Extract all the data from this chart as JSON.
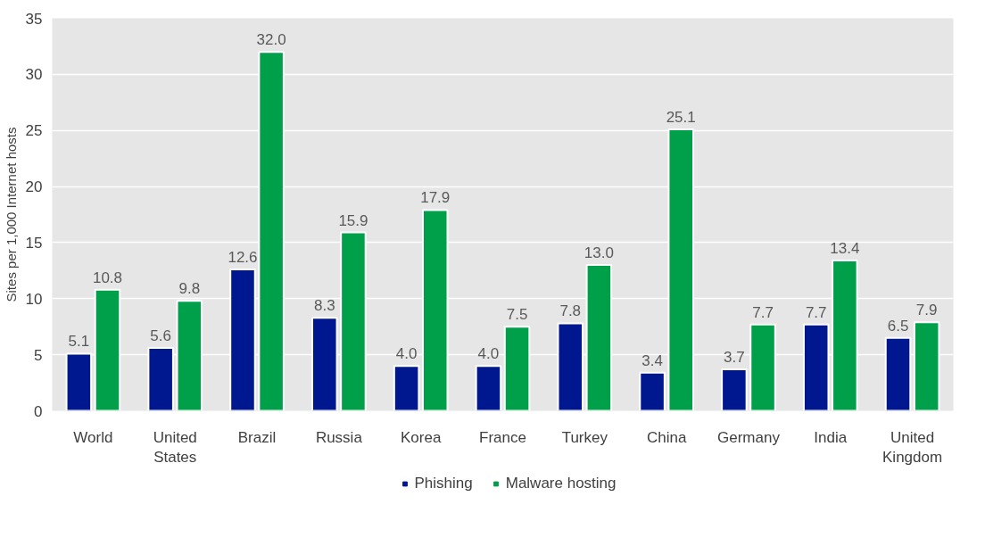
{
  "chart_data": {
    "type": "bar",
    "ylabel": "Sites per 1,000 Internet hosts",
    "categories": [
      "World",
      "United States",
      "Brazil",
      "Russia",
      "Korea",
      "France",
      "Turkey",
      "China",
      "Germany",
      "India",
      "United Kingdom"
    ],
    "series": [
      {
        "name": "Phishing",
        "color": "#00188f",
        "values": [
          5.1,
          5.6,
          12.6,
          8.3,
          4.0,
          4.0,
          7.8,
          3.4,
          3.7,
          7.7,
          6.5
        ],
        "value_labels": [
          "5.1",
          "5.6",
          "12.6",
          "8.3",
          "4.0",
          "4.0",
          "7.8",
          "3.4",
          "3.7",
          "7.7",
          "6.5"
        ]
      },
      {
        "name": "Malware hosting",
        "color": "#00a04a",
        "values": [
          10.8,
          9.8,
          32.0,
          15.9,
          17.9,
          7.5,
          13.0,
          25.1,
          7.7,
          13.4,
          7.9
        ],
        "value_labels": [
          "10.8",
          "9.8",
          "32.0",
          "15.9",
          "17.9",
          "7.5",
          "13.0",
          "25.1",
          "7.7",
          "13.4",
          "7.9"
        ]
      }
    ],
    "ylim": [
      0,
      35
    ],
    "yticks": [
      0,
      5,
      10,
      15,
      20,
      25,
      30,
      35
    ],
    "grid": "y",
    "legend": "bottom"
  }
}
